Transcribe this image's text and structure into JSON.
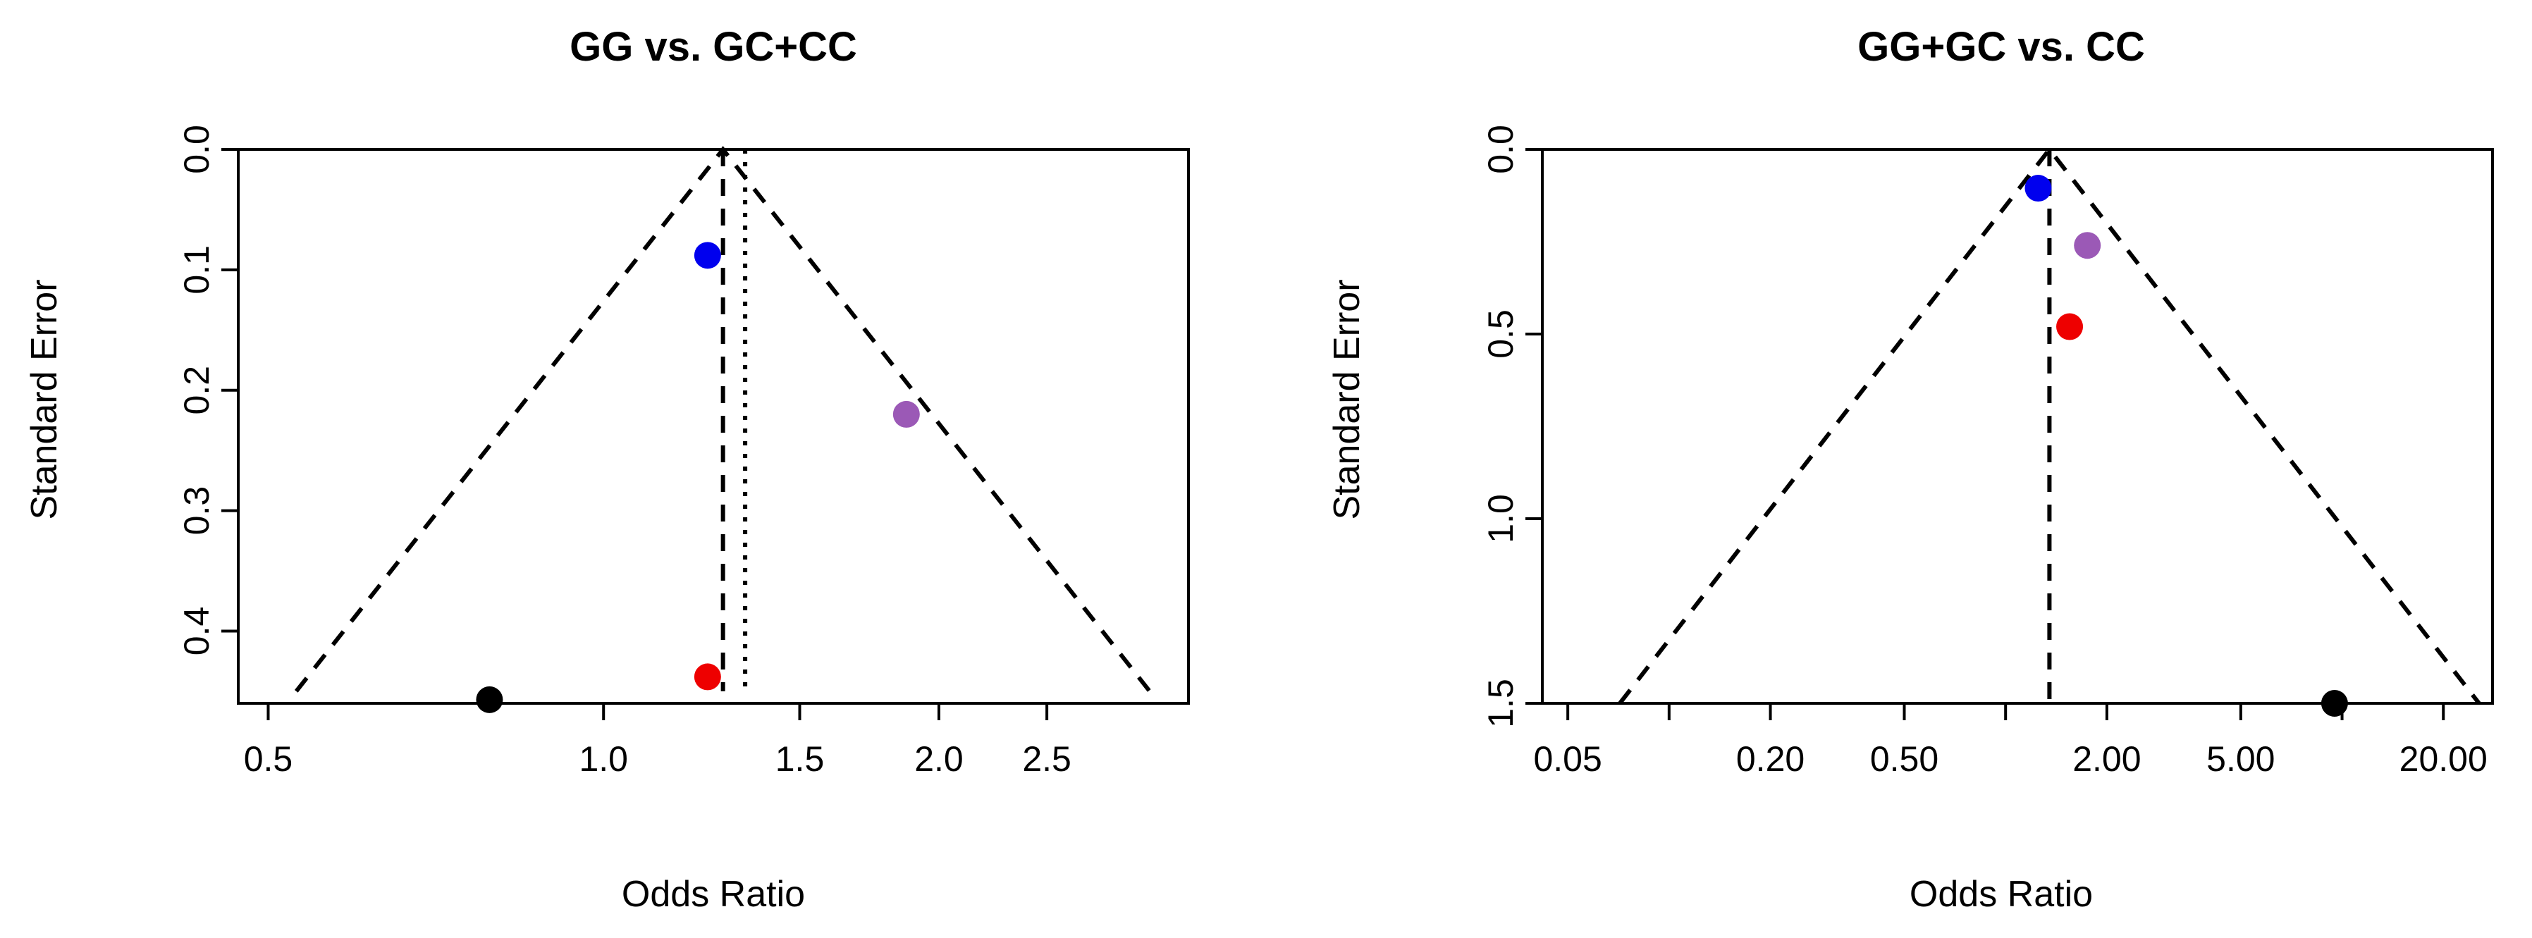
{
  "chart_data": [
    {
      "type": "scatter",
      "subtype": "funnel",
      "title": "GG vs. GC+CC",
      "xlabel": "Odds Ratio",
      "ylabel": "Standard Error",
      "x_scale": "log",
      "y_reversed": true,
      "xlim": [
        0.47,
        3.35
      ],
      "ylim": [
        0.0,
        0.46
      ],
      "x_ticks": [
        0.5,
        1.0,
        1.5,
        2.0,
        2.5
      ],
      "x_tick_labels": [
        "0.5",
        "1.0",
        "1.5",
        "2.0",
        "2.5"
      ],
      "y_ticks": [
        0.0,
        0.1,
        0.2,
        0.3,
        0.4
      ],
      "y_tick_labels": [
        "0.0",
        "0.1",
        "0.2",
        "0.3",
        "0.4"
      ],
      "centre_or": 1.28,
      "pooled_or": 1.34,
      "funnel_se_max": 0.45,
      "points": [
        {
          "x": 1.24,
          "y": 0.088,
          "color": "#0000ee"
        },
        {
          "x": 1.87,
          "y": 0.22,
          "color": "#9b59b6"
        },
        {
          "x": 1.24,
          "y": 0.438,
          "color": "#ee0000"
        },
        {
          "x": 0.79,
          "y": 0.457,
          "color": "#000000"
        }
      ],
      "grid": false
    },
    {
      "type": "scatter",
      "subtype": "funnel",
      "title": "GG+GC vs. CC",
      "xlabel": "Odds Ratio",
      "ylabel": "Standard Error",
      "x_scale": "log",
      "y_reversed": true,
      "xlim": [
        0.042,
        28
      ],
      "ylim": [
        0.0,
        1.5
      ],
      "x_ticks": [
        0.05,
        0.1,
        0.2,
        0.5,
        1.0,
        2.0,
        5.0,
        10.0,
        20.0
      ],
      "x_tick_labels": [
        "0.05",
        "",
        "0.20",
        "0.50",
        "",
        "2.00",
        "5.00",
        "",
        "20.00"
      ],
      "y_ticks": [
        0.0,
        0.5,
        1.0,
        1.5
      ],
      "y_tick_labels": [
        "0.0",
        "0.5",
        "1.0",
        "1.5"
      ],
      "centre_or": 1.35,
      "funnel_se_max": 1.5,
      "points": [
        {
          "x": 1.25,
          "y": 0.105,
          "color": "#0000ee"
        },
        {
          "x": 1.75,
          "y": 0.26,
          "color": "#9b59b6"
        },
        {
          "x": 1.55,
          "y": 0.48,
          "color": "#ee0000"
        },
        {
          "x": 9.5,
          "y": 1.5,
          "color": "#000000"
        }
      ],
      "grid": false
    }
  ]
}
